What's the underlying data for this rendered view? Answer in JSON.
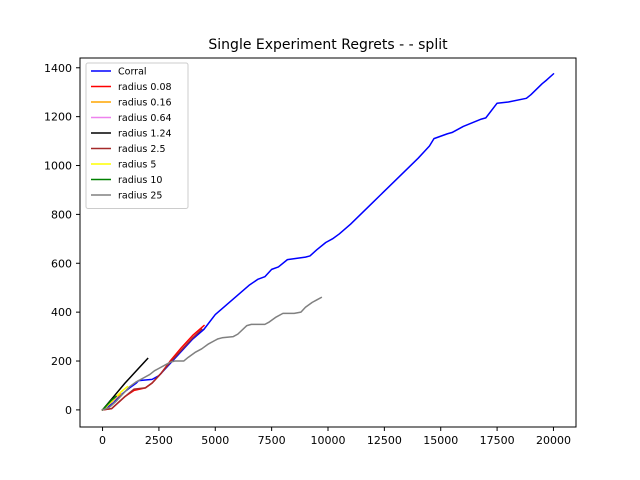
{
  "chart_data": {
    "type": "line",
    "title": "Single Experiment Regrets -  - split",
    "xlabel": "",
    "ylabel": "",
    "xlim": [
      -1000,
      21000
    ],
    "ylim": [
      -70,
      1440
    ],
    "xticks": [
      0,
      2500,
      5000,
      7500,
      10000,
      12500,
      15000,
      17500,
      20000
    ],
    "yticks": [
      0,
      200,
      400,
      600,
      800,
      1000,
      1200,
      1400
    ],
    "grid": false,
    "legend_position": "top-left",
    "series": [
      {
        "name": "Corral",
        "color": "#0000ff",
        "x": [
          0,
          200,
          500,
          800,
          1200,
          1500,
          1600,
          2200,
          2500,
          3000,
          3500,
          4000,
          4500,
          5000,
          5500,
          6000,
          6500,
          6900,
          7200,
          7500,
          7800,
          8200,
          9000,
          9200,
          9500,
          9900,
          10200,
          10500,
          11000,
          12000,
          13000,
          14000,
          14300,
          14500,
          14700,
          15300,
          15500,
          16000,
          16800,
          17000,
          17500,
          18000,
          18800,
          19000,
          19500,
          19700,
          20000
        ],
        "y": [
          0,
          10,
          30,
          60,
          90,
          110,
          120,
          125,
          140,
          190,
          240,
          290,
          330,
          390,
          430,
          470,
          510,
          535,
          545,
          575,
          585,
          615,
          625,
          630,
          655,
          685,
          700,
          720,
          760,
          850,
          940,
          1030,
          1060,
          1080,
          1110,
          1130,
          1135,
          1160,
          1190,
          1195,
          1255,
          1260,
          1275,
          1290,
          1335,
          1350,
          1375
        ]
      },
      {
        "name": "radius 0.08",
        "color": "#ff0000",
        "x": [
          0,
          400,
          700,
          1000,
          1400,
          1900,
          2200,
          2600,
          3000,
          3500,
          4000,
          4500
        ],
        "y": [
          0,
          5,
          30,
          55,
          80,
          90,
          110,
          150,
          200,
          255,
          305,
          345
        ]
      },
      {
        "name": "radius 0.16",
        "color": "#ffa500",
        "x": [
          0,
          200,
          500,
          800
        ],
        "y": [
          0,
          15,
          40,
          65
        ]
      },
      {
        "name": "radius 0.64",
        "color": "#ee82ee",
        "x": [
          0,
          200,
          400,
          650
        ],
        "y": [
          0,
          15,
          35,
          55
        ]
      },
      {
        "name": "radius 1.24",
        "color": "#000000",
        "x": [
          0,
          500,
          1000,
          1500,
          2000
        ],
        "y": [
          0,
          55,
          110,
          160,
          210
        ]
      },
      {
        "name": "radius 2.5",
        "color": "#a52a2a",
        "x": [
          0,
          400,
          700,
          1000,
          1400,
          1900,
          2200,
          2600,
          3000,
          3500,
          4000,
          4400
        ],
        "y": [
          0,
          5,
          30,
          55,
          85,
          90,
          110,
          150,
          195,
          245,
          295,
          330
        ]
      },
      {
        "name": "radius 5",
        "color": "#ffff00",
        "x": [
          0,
          300,
          600,
          900,
          1100
        ],
        "y": [
          0,
          25,
          55,
          80,
          95
        ]
      },
      {
        "name": "radius 10",
        "color": "#008000",
        "x": [
          0,
          200,
          400,
          600
        ],
        "y": [
          0,
          20,
          40,
          55
        ]
      },
      {
        "name": "radius 25",
        "color": "#808080",
        "x": [
          0,
          300,
          600,
          900,
          1200,
          1500,
          1800,
          2100,
          2300,
          2500,
          2800,
          3000,
          3200,
          3600,
          3800,
          4100,
          4400,
          4700,
          5000,
          5100,
          5300,
          5800,
          6000,
          6400,
          6600,
          7200,
          7400,
          7700,
          8000,
          8500,
          8800,
          9000,
          9300,
          9500,
          9700
        ],
        "y": [
          0,
          10,
          35,
          65,
          95,
          115,
          130,
          145,
          160,
          170,
          185,
          195,
          200,
          200,
          215,
          235,
          250,
          270,
          285,
          290,
          295,
          300,
          310,
          345,
          350,
          350,
          360,
          380,
          395,
          395,
          400,
          420,
          440,
          450,
          460
        ]
      }
    ]
  }
}
